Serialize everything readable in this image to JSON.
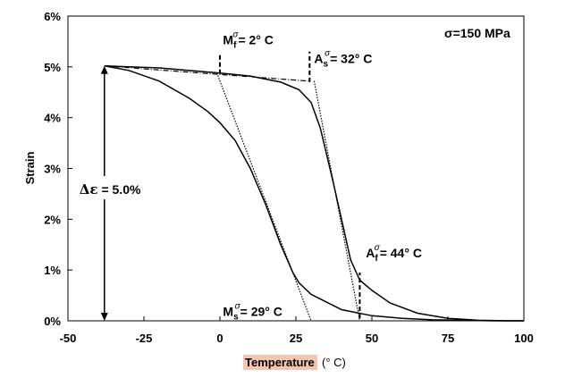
{
  "chart_data": {
    "type": "line",
    "title": "σ=150 MPa",
    "xlabel": {
      "highlighted": "Temperature",
      "unit": "(° C)"
    },
    "ylabel": "Strain",
    "xlim": [
      -50,
      100
    ],
    "ylim": [
      0,
      6
    ],
    "x_ticks": [
      -50,
      -25,
      0,
      25,
      50,
      75,
      100
    ],
    "x_tick_labels": [
      "-50",
      "-25",
      "0",
      "25",
      "50",
      "75",
      "100"
    ],
    "y_ticks": [
      0,
      1,
      2,
      3,
      4,
      5,
      6
    ],
    "y_tick_labels": [
      "0%",
      "1%",
      "2%",
      "3%",
      "4%",
      "5%",
      "6%"
    ],
    "grid": false,
    "series": [
      {
        "style": "solid",
        "points": [
          [
            -38,
            5.02
          ],
          [
            -30,
            4.93
          ],
          [
            -20,
            4.72
          ],
          [
            -10,
            4.38
          ],
          [
            -4,
            4.12
          ],
          [
            0,
            3.9
          ],
          [
            5,
            3.55
          ],
          [
            10,
            3.0
          ],
          [
            15,
            2.3
          ],
          [
            20,
            1.5
          ],
          [
            24,
            0.95
          ],
          [
            26,
            0.75
          ],
          [
            30,
            0.52
          ],
          [
            40,
            0.22
          ],
          [
            50,
            0.1
          ],
          [
            60,
            0.05
          ],
          [
            70,
            0.02
          ],
          [
            80,
            0.01
          ],
          [
            90,
            0.0
          ],
          [
            100,
            0.0
          ]
        ]
      },
      {
        "style": "solid",
        "points": [
          [
            -38,
            5.02
          ],
          [
            -20,
            4.98
          ],
          [
            0,
            4.88
          ],
          [
            10,
            4.82
          ],
          [
            20,
            4.7
          ],
          [
            26,
            4.55
          ],
          [
            30,
            4.3
          ],
          [
            33,
            3.8
          ],
          [
            37,
            2.8
          ],
          [
            40,
            2.0
          ],
          [
            43,
            1.2
          ],
          [
            46,
            0.8
          ],
          [
            50,
            0.6
          ],
          [
            56,
            0.35
          ],
          [
            65,
            0.15
          ],
          [
            75,
            0.05
          ],
          [
            85,
            0.01
          ],
          [
            95,
            0.0
          ],
          [
            100,
            0.0
          ]
        ]
      }
    ],
    "tangents": [
      {
        "style": "dashdot",
        "points": [
          [
            -38,
            5.02
          ],
          [
            29,
            4.72
          ]
        ]
      },
      {
        "style": "dotted",
        "points": [
          [
            -1,
            4.88
          ],
          [
            30,
            0.0
          ]
        ]
      },
      {
        "style": "dotted",
        "points": [
          [
            31,
            4.72
          ],
          [
            46,
            0.0
          ]
        ]
      }
    ],
    "markers": [
      {
        "name": "Mf",
        "x": 0,
        "y_from": 4.86,
        "y_to": 5.25
      },
      {
        "name": "As",
        "x": 29.5,
        "y_from": 4.7,
        "y_to": 5.3
      },
      {
        "name": "Af",
        "x": 46,
        "y_from": 0.05,
        "y_to": 0.95
      }
    ],
    "annotations": [
      {
        "name": "mf",
        "base": "M",
        "sub": "f",
        "sup": "σ",
        "value": "= 2° C",
        "x": 1,
        "y": 5.45
      },
      {
        "name": "as",
        "base": "A",
        "sub": "s",
        "sup": "σ",
        "value": "= 32° C",
        "x": 31,
        "y": 5.08
      },
      {
        "name": "af",
        "base": "A",
        "sub": "f",
        "sup": "σ",
        "value": "= 44° C",
        "x": 48,
        "y": 1.25
      },
      {
        "name": "ms",
        "base": "M",
        "sub": "s",
        "sup": "σ",
        "value": "= 29° C",
        "x": 1,
        "y": 0.1
      }
    ],
    "delta_strain": {
      "symbol": "Δε",
      "text": " = 5.0%",
      "x": -38,
      "y_top": 5.02,
      "y_bottom": 0.0
    }
  }
}
